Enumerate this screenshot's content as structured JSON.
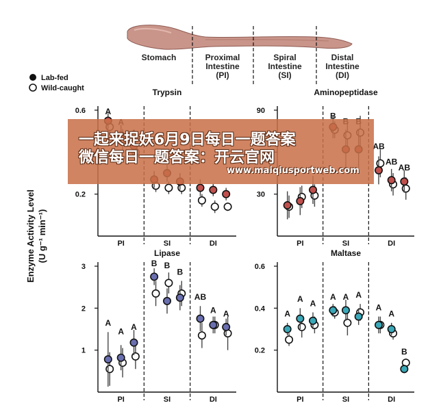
{
  "figure": {
    "gut_segments": [
      "Stomach",
      "Proximal\nIntestine\n(PI)",
      "Spiral\nIntestine\n(SI)",
      "Distal\nIntestine\n(DI)"
    ],
    "legend": [
      {
        "label": "Lab-fed",
        "style": "filled"
      },
      {
        "label": "Wild-caught",
        "style": "open"
      }
    ],
    "y_axis_label_line1": "Enzyme Activity Level",
    "y_axis_label_line2": "(U g⁻¹ min⁻¹)",
    "colors": {
      "trypsin": "#c0504d",
      "aminopeptidase": "#c0504d",
      "lipase": "#6a6fb0",
      "maltase": "#3aa8b8",
      "open": "#ffffff",
      "stroke": "#111111",
      "errorbar": "#444444"
    }
  },
  "watermark": {
    "line1": "一起来捉妖6月9日每日一题答案",
    "line2": "微信每日一题答案：开云官网",
    "url": "www.maiqiusportweb.com"
  },
  "chart_data": [
    {
      "type": "scatter",
      "title": "Trypsin",
      "ylim": [
        0,
        0.6
      ],
      "yticks": [
        0.2,
        0.4,
        0.6
      ],
      "ytick_labels": [
        "0.2",
        "",
        "0.6"
      ],
      "regions": [
        "PI",
        "SI",
        "DI"
      ],
      "positions": 9,
      "lab_fed": [
        {
          "pos": 0,
          "y": 0.55,
          "err": 0.04
        },
        {
          "pos": 1,
          "y": 0.48,
          "err": 0.05
        },
        {
          "pos": 2,
          "y": 0.43,
          "err": 0.05
        },
        {
          "pos": 3,
          "y": 0.27,
          "err": 0.04
        },
        {
          "pos": 4,
          "y": 0.3,
          "err": 0.04
        },
        {
          "pos": 5,
          "y": 0.26,
          "err": 0.04
        },
        {
          "pos": 6,
          "y": 0.23,
          "err": 0.04
        },
        {
          "pos": 7,
          "y": 0.22,
          "err": 0.03
        },
        {
          "pos": 8,
          "y": 0.2,
          "err": 0.03
        }
      ],
      "wild_caught": [
        {
          "pos": 0,
          "y": 0.52,
          "err": 0.04
        },
        {
          "pos": 1,
          "y": 0.46,
          "err": 0.05
        },
        {
          "pos": 2,
          "y": 0.4,
          "err": 0.05
        },
        {
          "pos": 3,
          "y": 0.24,
          "err": 0.03
        },
        {
          "pos": 4,
          "y": 0.23,
          "err": 0.03
        },
        {
          "pos": 5,
          "y": 0.23,
          "err": 0.03
        },
        {
          "pos": 6,
          "y": 0.17,
          "err": 0.03
        },
        {
          "pos": 7,
          "y": 0.14,
          "err": 0.03
        },
        {
          "pos": 8,
          "y": 0.14,
          "err": 0.02
        }
      ],
      "labels": [
        {
          "pos": 0,
          "text": "A",
          "y": 0.58
        },
        {
          "pos": 1,
          "text": "A",
          "y": 0.53
        },
        {
          "pos": 2,
          "text": "A",
          "y": 0.48
        }
      ]
    },
    {
      "type": "scatter",
      "title": "Aminopeptidase",
      "ylim": [
        0,
        90
      ],
      "yticks": [
        30,
        60,
        90
      ],
      "ytick_labels": [
        "30",
        "",
        "90"
      ],
      "regions": [
        "PI",
        "SI",
        "DI"
      ],
      "positions": 9,
      "lab_fed": [
        {
          "pos": 0,
          "y": 22,
          "err": 10
        },
        {
          "pos": 1,
          "y": 25,
          "err": 10
        },
        {
          "pos": 2,
          "y": 33,
          "err": 10
        },
        {
          "pos": 3,
          "y": 78,
          "err": 8
        },
        {
          "pos": 4,
          "y": 62,
          "err": 14
        },
        {
          "pos": 5,
          "y": 62,
          "err": 14
        },
        {
          "pos": 6,
          "y": 47,
          "err": 10
        },
        {
          "pos": 7,
          "y": 40,
          "err": 8
        },
        {
          "pos": 8,
          "y": 39,
          "err": 8
        }
      ],
      "wild_caught": [
        {
          "pos": 0,
          "y": 21,
          "err": 8
        },
        {
          "pos": 1,
          "y": 28,
          "err": 8
        },
        {
          "pos": 2,
          "y": 29,
          "err": 8
        },
        {
          "pos": 3,
          "y": 76,
          "err": 6
        },
        {
          "pos": 4,
          "y": 72,
          "err": 10
        },
        {
          "pos": 5,
          "y": 74,
          "err": 12
        },
        {
          "pos": 6,
          "y": 52,
          "err": 10
        },
        {
          "pos": 7,
          "y": 37,
          "err": 8
        },
        {
          "pos": 8,
          "y": 34,
          "err": 8
        }
      ],
      "labels": [
        {
          "pos": 3,
          "text": "B",
          "y": 84
        },
        {
          "pos": 4,
          "text": "B",
          "y": 80
        },
        {
          "pos": 5,
          "text": "B",
          "y": 80
        },
        {
          "pos": 6,
          "text": "AB",
          "y": 62
        },
        {
          "pos": 7,
          "text": "AB",
          "y": 51
        },
        {
          "pos": 8,
          "text": "AB",
          "y": 47
        }
      ]
    },
    {
      "type": "scatter",
      "title": "Lipase",
      "ylim": [
        0,
        3
      ],
      "yticks": [
        1,
        2,
        3
      ],
      "ytick_labels": [
        "1",
        "2",
        "3"
      ],
      "regions": [
        "PI",
        "SI",
        "DI"
      ],
      "positions": 9,
      "lab_fed": [
        {
          "pos": 0,
          "y": 0.78,
          "err": 0.65
        },
        {
          "pos": 1,
          "y": 0.82,
          "err": 0.3
        },
        {
          "pos": 2,
          "y": 1.18,
          "err": 0.3
        },
        {
          "pos": 3,
          "y": 2.75,
          "err": 0.2
        },
        {
          "pos": 4,
          "y": 2.17,
          "err": 0.3
        },
        {
          "pos": 5,
          "y": 2.25,
          "err": 0.3
        },
        {
          "pos": 6,
          "y": 1.75,
          "err": 0.3
        },
        {
          "pos": 7,
          "y": 1.6,
          "err": 0.2
        },
        {
          "pos": 8,
          "y": 1.55,
          "err": 0.2
        }
      ],
      "wild_caught": [
        {
          "pos": 0,
          "y": 0.55,
          "err": 0.4
        },
        {
          "pos": 1,
          "y": 0.7,
          "err": 0.35
        },
        {
          "pos": 2,
          "y": 0.85,
          "err": 0.3
        },
        {
          "pos": 3,
          "y": 2.35,
          "err": 0.3
        },
        {
          "pos": 4,
          "y": 2.6,
          "err": 0.25
        },
        {
          "pos": 5,
          "y": 2.35,
          "err": 0.3
        },
        {
          "pos": 6,
          "y": 1.35,
          "err": 0.3
        },
        {
          "pos": 7,
          "y": 1.6,
          "err": 0.2
        },
        {
          "pos": 8,
          "y": 1.4,
          "err": 0.4
        }
      ],
      "labels": [
        {
          "pos": 0,
          "text": "A",
          "y": 1.58
        },
        {
          "pos": 1,
          "text": "A",
          "y": 1.38
        },
        {
          "pos": 2,
          "text": "A",
          "y": 1.48
        },
        {
          "pos": 3,
          "text": "B",
          "y": 3.0
        },
        {
          "pos": 4,
          "text": "B",
          "y": 2.95
        },
        {
          "pos": 5,
          "text": "B",
          "y": 2.8
        },
        {
          "pos": 6,
          "text": "AB",
          "y": 2.2
        },
        {
          "pos": 7,
          "text": "A",
          "y": 1.88
        },
        {
          "pos": 8,
          "text": "A",
          "y": 1.8
        }
      ]
    },
    {
      "type": "scatter",
      "title": "Maltase",
      "ylim": [
        0,
        0.6
      ],
      "yticks": [
        0.2,
        0.4,
        0.6
      ],
      "ytick_labels": [
        "0.2",
        "0.4",
        "0.6"
      ],
      "regions": [
        "PI",
        "SI",
        "DI"
      ],
      "positions": 9,
      "lab_fed": [
        {
          "pos": 0,
          "y": 0.3,
          "err": 0.03
        },
        {
          "pos": 1,
          "y": 0.35,
          "err": 0.05
        },
        {
          "pos": 2,
          "y": 0.34,
          "err": 0.04
        },
        {
          "pos": 3,
          "y": 0.39,
          "err": 0.03
        },
        {
          "pos": 4,
          "y": 0.39,
          "err": 0.05
        },
        {
          "pos": 5,
          "y": 0.36,
          "err": 0.04
        },
        {
          "pos": 6,
          "y": 0.32,
          "err": 0.04
        },
        {
          "pos": 7,
          "y": 0.3,
          "err": 0.03
        },
        {
          "pos": 8,
          "y": 0.11,
          "err": 0.02
        }
      ],
      "wild_caught": [
        {
          "pos": 0,
          "y": 0.25,
          "err": 0.03
        },
        {
          "pos": 1,
          "y": 0.31,
          "err": 0.05
        },
        {
          "pos": 2,
          "y": 0.32,
          "err": 0.04
        },
        {
          "pos": 3,
          "y": 0.38,
          "err": 0.03
        },
        {
          "pos": 4,
          "y": 0.33,
          "err": 0.06
        },
        {
          "pos": 5,
          "y": 0.38,
          "err": 0.04
        },
        {
          "pos": 6,
          "y": 0.32,
          "err": 0.04
        },
        {
          "pos": 7,
          "y": 0.28,
          "err": 0.03
        },
        {
          "pos": 8,
          "y": 0.14,
          "err": 0.02
        }
      ],
      "labels": [
        {
          "pos": 0,
          "text": "A",
          "y": 0.36
        },
        {
          "pos": 1,
          "text": "A",
          "y": 0.43
        },
        {
          "pos": 2,
          "text": "A",
          "y": 0.41
        },
        {
          "pos": 3,
          "text": "A",
          "y": 0.44
        },
        {
          "pos": 4,
          "text": "A",
          "y": 0.44
        },
        {
          "pos": 5,
          "text": "A",
          "y": 0.45
        },
        {
          "pos": 6,
          "text": "A",
          "y": 0.39
        },
        {
          "pos": 7,
          "text": "A",
          "y": 0.36
        },
        {
          "pos": 8,
          "text": "B",
          "y": 0.18
        }
      ]
    }
  ]
}
